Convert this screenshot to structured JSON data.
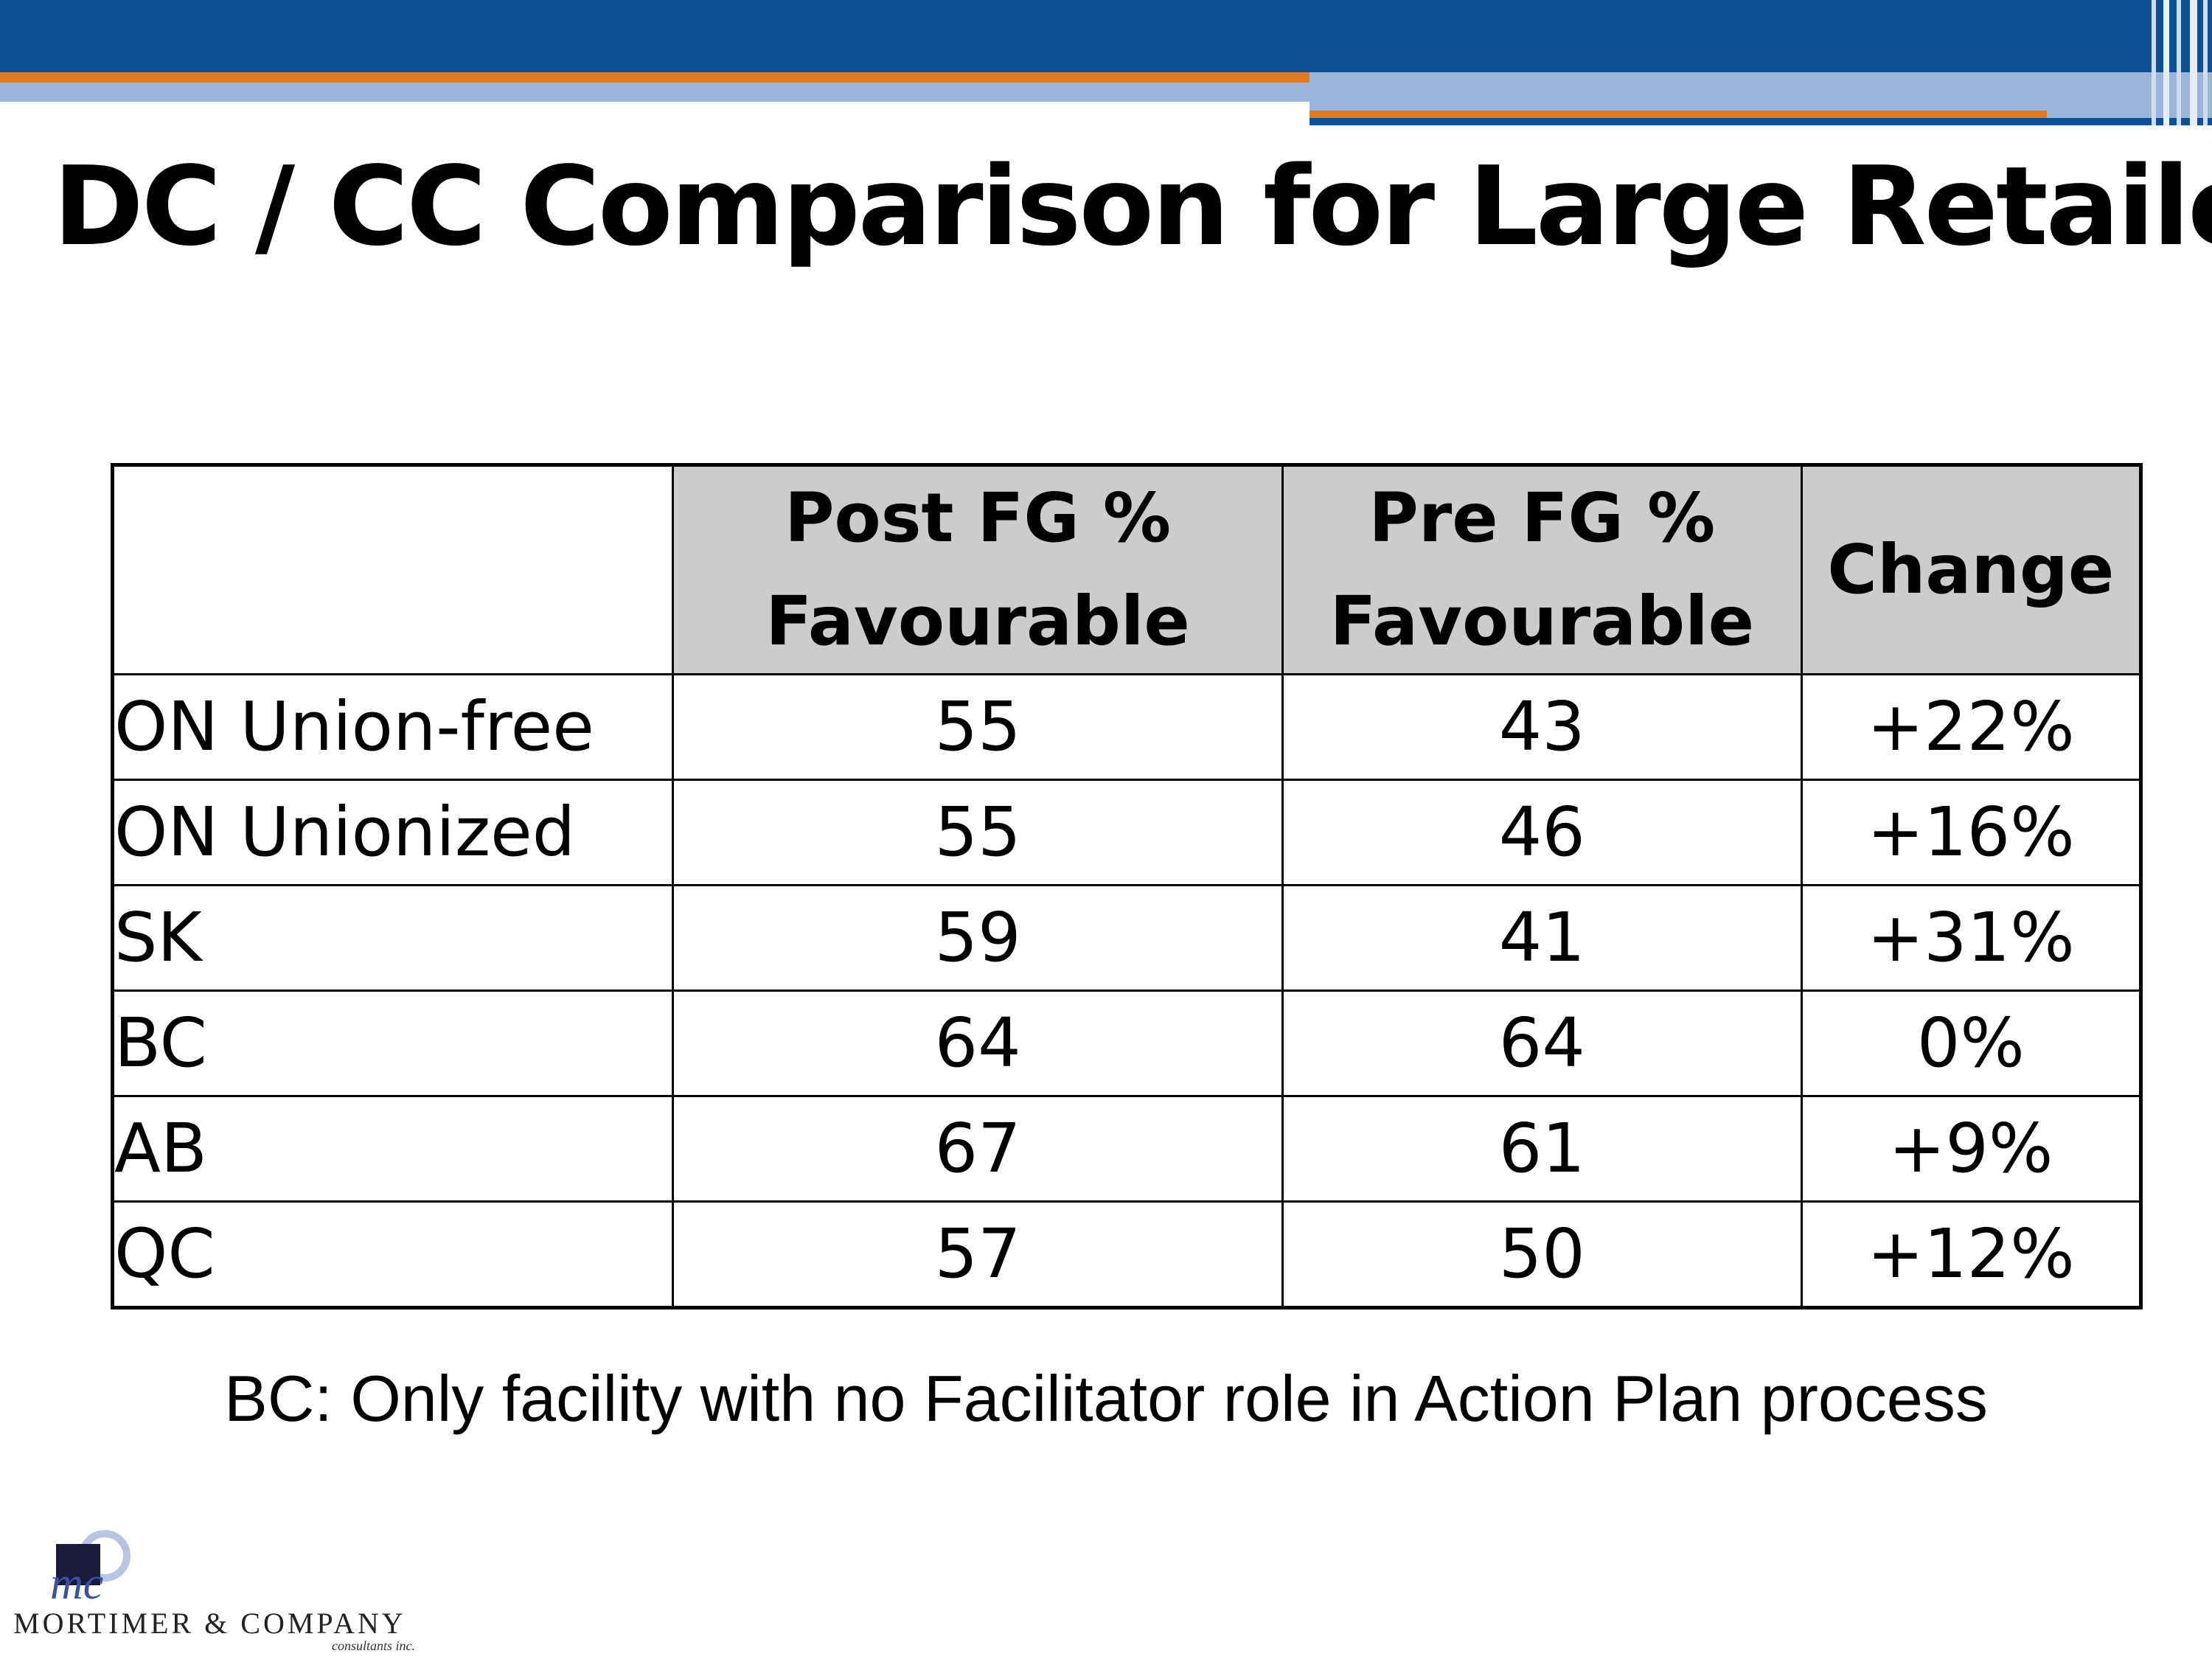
{
  "colors": {
    "top_blue": "#0e5095",
    "top_orange": "#e07a1f",
    "top_light_blue": "#9cb4d8",
    "header_fill": "#cccccc"
  },
  "slide": {
    "title": "DC / CC Comparison for Large Retailer",
    "note": "BC:  Only facility with no Facilitator role in Action Plan process"
  },
  "table": {
    "headers": {
      "post": [
        "Post FG %",
        "Favourable"
      ],
      "pre": [
        "Pre FG %",
        "Favourable"
      ],
      "change": "Change"
    },
    "rows": [
      {
        "label": "ON Union-free",
        "post": "55",
        "pre": "43",
        "change": "+22%"
      },
      {
        "label": "ON Unionized",
        "post": "55",
        "pre": "46",
        "change": "+16%"
      },
      {
        "label": "SK",
        "post": "59",
        "pre": "41",
        "change": "+31%"
      },
      {
        "label": "BC",
        "post": "64",
        "pre": "64",
        "change": "0%"
      },
      {
        "label": "AB",
        "post": "67",
        "pre": "61",
        "change": "+9%"
      },
      {
        "label": "QC",
        "post": "57",
        "pre": "50",
        "change": "+12%"
      }
    ]
  },
  "logo": {
    "monogram": "mc",
    "name": "MORTIMER & COMPANY",
    "sub": "consultants inc."
  }
}
